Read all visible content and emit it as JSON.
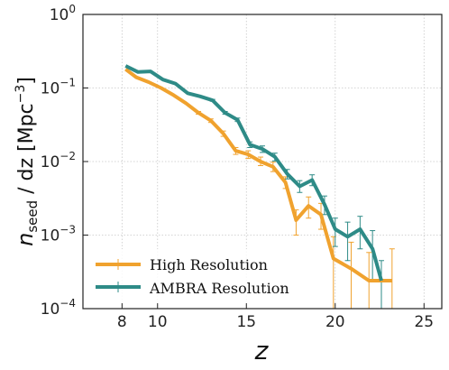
{
  "chart_data": {
    "type": "line",
    "xlabel": "z",
    "ylabel_main": "n",
    "ylabel_sub": "seed",
    "ylabel_rest": " / dz [Mpc",
    "ylabel_sup": "−3",
    "ylabel_close": "]",
    "xlim": [
      5.8,
      26.0
    ],
    "ylim_log10": [
      -4,
      0
    ],
    "y_scale": "log",
    "grid": true,
    "x_ticks": [
      {
        "value": 8,
        "label": "8"
      },
      {
        "value": 10,
        "label": "10"
      },
      {
        "value": 15,
        "label": "15"
      },
      {
        "value": 20,
        "label": "20"
      },
      {
        "value": 25,
        "label": "25"
      }
    ],
    "y_ticks": [
      {
        "exp": 0,
        "base": "10",
        "sup": "0"
      },
      {
        "exp": -1,
        "base": "10",
        "sup": "−1"
      },
      {
        "exp": -2,
        "base": "10",
        "sup": "−2"
      },
      {
        "exp": -3,
        "base": "10",
        "sup": "−3"
      },
      {
        "exp": -4,
        "base": "10",
        "sup": "−4"
      }
    ],
    "legend_position": "lower-left",
    "series": [
      {
        "name": "High Resolution",
        "color": "#f0a22e",
        "points": [
          {
            "x": 8.2,
            "y": 0.18,
            "lo": 0.18,
            "hi": 0.18
          },
          {
            "x": 8.8,
            "y": 0.14,
            "lo": 0.14,
            "hi": 0.14
          },
          {
            "x": 9.5,
            "y": 0.12,
            "lo": 0.12,
            "hi": 0.12
          },
          {
            "x": 10.2,
            "y": 0.1,
            "lo": 0.1,
            "hi": 0.1
          },
          {
            "x": 10.9,
            "y": 0.08,
            "lo": 0.08,
            "hi": 0.08
          },
          {
            "x": 11.6,
            "y": 0.062,
            "lo": 0.062,
            "hi": 0.062
          },
          {
            "x": 12.3,
            "y": 0.046,
            "lo": 0.044,
            "hi": 0.048
          },
          {
            "x": 13.0,
            "y": 0.036,
            "lo": 0.034,
            "hi": 0.038
          },
          {
            "x": 13.7,
            "y": 0.024,
            "lo": 0.022,
            "hi": 0.026
          },
          {
            "x": 14.4,
            "y": 0.014,
            "lo": 0.0125,
            "hi": 0.0155
          },
          {
            "x": 15.1,
            "y": 0.0125,
            "lo": 0.011,
            "hi": 0.014
          },
          {
            "x": 15.8,
            "y": 0.01,
            "lo": 0.0088,
            "hi": 0.0115
          },
          {
            "x": 16.5,
            "y": 0.0085,
            "lo": 0.0073,
            "hi": 0.0098
          },
          {
            "x": 17.2,
            "y": 0.0052,
            "lo": 0.0043,
            "hi": 0.0062
          },
          {
            "x": 17.8,
            "y": 0.0016,
            "lo": 0.001,
            "hi": 0.0022
          },
          {
            "x": 18.5,
            "y": 0.0025,
            "lo": 0.0017,
            "hi": 0.0033
          },
          {
            "x": 19.2,
            "y": 0.0019,
            "lo": 0.0012,
            "hi": 0.0027
          },
          {
            "x": 19.9,
            "y": 0.00048,
            "lo": 0.0001,
            "hi": 0.00095
          },
          {
            "x": 20.9,
            "y": 0.00035,
            "lo": 0.0001,
            "hi": 0.0008
          },
          {
            "x": 21.9,
            "y": 0.00024,
            "lo": 0.0001,
            "hi": 0.00058
          },
          {
            "x": 23.2,
            "y": 0.00024,
            "lo": 0.0001,
            "hi": 0.00065
          }
        ]
      },
      {
        "name": "AMBRA Resolution",
        "color": "#2e8b87",
        "points": [
          {
            "x": 8.2,
            "y": 0.2,
            "lo": 0.2,
            "hi": 0.2
          },
          {
            "x": 8.9,
            "y": 0.165,
            "lo": 0.165,
            "hi": 0.165
          },
          {
            "x": 9.6,
            "y": 0.168,
            "lo": 0.168,
            "hi": 0.168
          },
          {
            "x": 10.3,
            "y": 0.13,
            "lo": 0.13,
            "hi": 0.13
          },
          {
            "x": 11.0,
            "y": 0.115,
            "lo": 0.115,
            "hi": 0.115
          },
          {
            "x": 11.7,
            "y": 0.085,
            "lo": 0.085,
            "hi": 0.085
          },
          {
            "x": 12.4,
            "y": 0.077,
            "lo": 0.077,
            "hi": 0.077
          },
          {
            "x": 13.1,
            "y": 0.068,
            "lo": 0.066,
            "hi": 0.07
          },
          {
            "x": 13.8,
            "y": 0.046,
            "lo": 0.044,
            "hi": 0.048
          },
          {
            "x": 14.5,
            "y": 0.037,
            "lo": 0.035,
            "hi": 0.039
          },
          {
            "x": 15.2,
            "y": 0.017,
            "lo": 0.0155,
            "hi": 0.0185
          },
          {
            "x": 15.9,
            "y": 0.0148,
            "lo": 0.0133,
            "hi": 0.0163
          },
          {
            "x": 16.6,
            "y": 0.0116,
            "lo": 0.0102,
            "hi": 0.013
          },
          {
            "x": 17.3,
            "y": 0.0068,
            "lo": 0.0058,
            "hi": 0.0078
          },
          {
            "x": 18.0,
            "y": 0.0046,
            "lo": 0.0038,
            "hi": 0.0055
          },
          {
            "x": 18.7,
            "y": 0.0056,
            "lo": 0.0047,
            "hi": 0.0066
          },
          {
            "x": 19.4,
            "y": 0.0026,
            "lo": 0.0019,
            "hi": 0.0034
          },
          {
            "x": 20.0,
            "y": 0.0012,
            "lo": 0.0007,
            "hi": 0.0017
          },
          {
            "x": 20.7,
            "y": 0.00095,
            "lo": 0.00045,
            "hi": 0.0015
          },
          {
            "x": 21.4,
            "y": 0.0012,
            "lo": 0.00065,
            "hi": 0.0018
          },
          {
            "x": 22.1,
            "y": 0.00065,
            "lo": 0.00025,
            "hi": 0.00115
          },
          {
            "x": 22.6,
            "y": 0.00024,
            "lo": 0.0001,
            "hi": 0.00045
          }
        ]
      }
    ]
  }
}
